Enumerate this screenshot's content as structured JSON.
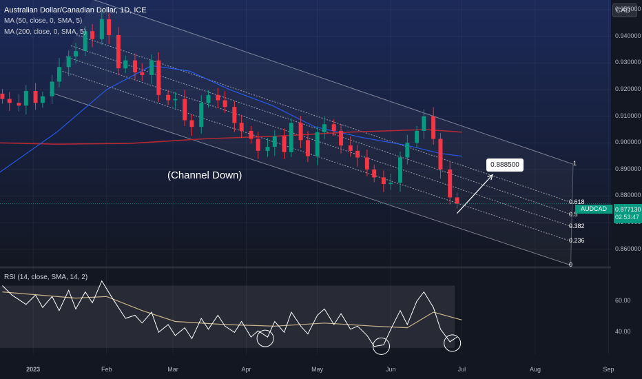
{
  "header": {
    "title": "Australian Dollar/Canadian Dollar, 1D, ICE",
    "ma50": "MA (50, close, 0, SMA, 5)",
    "ma200": "MA (200, close, 0, SMA, 5)",
    "currency": "CAD"
  },
  "rsi": {
    "label": "RSI (14, close, SMA, 14, 2)",
    "axis_ticks": [
      "60.00",
      "40.00"
    ]
  },
  "annotation": {
    "text": "(Channel Down)",
    "target": "0.888500"
  },
  "price": {
    "symbol": "AUDCAD",
    "last": "0.877130",
    "countdown": "02:53:47"
  },
  "fib_levels": [
    "1",
    "0.618",
    "0.5",
    "0.382",
    "0.236",
    "0"
  ],
  "colors": {
    "background": "#131722",
    "up": "#089981",
    "down": "#f23645",
    "ma50": "#2962ff",
    "ma200": "#b22833",
    "rsi": "#ffffff",
    "rsi_ma": "#c9b48a"
  },
  "chart_data": {
    "type": "candlestick",
    "title": "Australian Dollar/Canadian Dollar, 1D, ICE",
    "y_ticks": [
      "0.950000",
      "0.940000",
      "0.930000",
      "0.920000",
      "0.910000",
      "0.900000",
      "0.890000",
      "0.880000",
      "0.870000",
      "0.860000"
    ],
    "y_tick_values": [
      0.95,
      0.94,
      0.93,
      0.92,
      0.91,
      0.9,
      0.89,
      0.88,
      0.87,
      0.86
    ],
    "ylim": [
      0.8537,
      0.9537
    ],
    "x_ticks": [
      "2023",
      "Feb",
      "Mar",
      "Apr",
      "May",
      "Jun",
      "Jul",
      "Aug",
      "Sep"
    ],
    "x_tick_dates": [
      "2023-01-01",
      "2023-02-01",
      "2023-03-01",
      "2023-04-01",
      "2023-05-01",
      "2023-06-01",
      "2023-07-01",
      "2023-08-01",
      "2023-09-01"
    ],
    "xlim": [
      "2022-12-18",
      "2023-09-02"
    ],
    "closes": [
      {
        "date": "2022-12-19",
        "close": 0.9165
      },
      {
        "date": "2022-12-22",
        "close": 0.915
      },
      {
        "date": "2022-12-26",
        "close": 0.914
      },
      {
        "date": "2022-12-29",
        "close": 0.9195
      },
      {
        "date": "2023-01-02",
        "close": 0.915
      },
      {
        "date": "2023-01-05",
        "close": 0.9175
      },
      {
        "date": "2023-01-09",
        "close": 0.923
      },
      {
        "date": "2023-01-12",
        "close": 0.9285
      },
      {
        "date": "2023-01-16",
        "close": 0.9325
      },
      {
        "date": "2023-01-19",
        "close": 0.9345
      },
      {
        "date": "2023-01-23",
        "close": 0.942
      },
      {
        "date": "2023-01-26",
        "close": 0.939
      },
      {
        "date": "2023-01-30",
        "close": 0.9465
      },
      {
        "date": "2023-02-02",
        "close": 0.9405
      },
      {
        "date": "2023-02-06",
        "close": 0.928
      },
      {
        "date": "2023-02-09",
        "close": 0.931
      },
      {
        "date": "2023-02-13",
        "close": 0.9265
      },
      {
        "date": "2023-02-16",
        "close": 0.9255
      },
      {
        "date": "2023-02-20",
        "close": 0.931
      },
      {
        "date": "2023-02-23",
        "close": 0.918
      },
      {
        "date": "2023-02-27",
        "close": 0.916
      },
      {
        "date": "2023-03-02",
        "close": 0.9165
      },
      {
        "date": "2023-03-06",
        "close": 0.9085
      },
      {
        "date": "2023-03-09",
        "close": 0.906
      },
      {
        "date": "2023-03-13",
        "close": 0.915
      },
      {
        "date": "2023-03-16",
        "close": 0.918
      },
      {
        "date": "2023-03-20",
        "close": 0.916
      },
      {
        "date": "2023-03-23",
        "close": 0.9135
      },
      {
        "date": "2023-03-27",
        "close": 0.9075
      },
      {
        "date": "2023-03-30",
        "close": 0.9045
      },
      {
        "date": "2023-04-03",
        "close": 0.9015
      },
      {
        "date": "2023-04-06",
        "close": 0.897
      },
      {
        "date": "2023-04-10",
        "close": 0.8985
      },
      {
        "date": "2023-04-13",
        "close": 0.9025
      },
      {
        "date": "2023-04-17",
        "close": 0.8965
      },
      {
        "date": "2023-04-20",
        "close": 0.9075
      },
      {
        "date": "2023-04-24",
        "close": 0.901
      },
      {
        "date": "2023-04-27",
        "close": 0.895
      },
      {
        "date": "2023-05-01",
        "close": 0.904
      },
      {
        "date": "2023-05-04",
        "close": 0.907
      },
      {
        "date": "2023-05-08",
        "close": 0.9045
      },
      {
        "date": "2023-05-11",
        "close": 0.899
      },
      {
        "date": "2023-05-15",
        "close": 0.897
      },
      {
        "date": "2023-05-18",
        "close": 0.8945
      },
      {
        "date": "2023-05-22",
        "close": 0.89
      },
      {
        "date": "2023-05-25",
        "close": 0.887
      },
      {
        "date": "2023-05-29",
        "close": 0.8845
      },
      {
        "date": "2023-06-01",
        "close": 0.885
      },
      {
        "date": "2023-06-05",
        "close": 0.8945
      },
      {
        "date": "2023-06-08",
        "close": 0.9
      },
      {
        "date": "2023-06-12",
        "close": 0.9045
      },
      {
        "date": "2023-06-15",
        "close": 0.91
      },
      {
        "date": "2023-06-19",
        "close": 0.9015
      },
      {
        "date": "2023-06-22",
        "close": 0.89
      },
      {
        "date": "2023-06-26",
        "close": 0.8795
      },
      {
        "date": "2023-06-29",
        "close": 0.8771
      }
    ],
    "ma50": [
      {
        "date": "2022-12-18",
        "value": 0.889
      },
      {
        "date": "2023-01-11",
        "value": 0.904
      },
      {
        "date": "2023-02-01",
        "value": 0.92
      },
      {
        "date": "2023-02-20",
        "value": 0.929
      },
      {
        "date": "2023-03-08",
        "value": 0.927
      },
      {
        "date": "2023-03-25",
        "value": 0.92
      },
      {
        "date": "2023-04-12",
        "value": 0.914
      },
      {
        "date": "2023-04-30",
        "value": 0.906
      },
      {
        "date": "2023-05-20",
        "value": 0.902
      },
      {
        "date": "2023-06-08",
        "value": 0.899
      },
      {
        "date": "2023-06-22",
        "value": 0.896
      },
      {
        "date": "2023-07-01",
        "value": 0.895
      }
    ],
    "ma200": [
      {
        "date": "2022-12-18",
        "value": 0.9
      },
      {
        "date": "2023-01-11",
        "value": 0.8995
      },
      {
        "date": "2023-02-11",
        "value": 0.8998
      },
      {
        "date": "2023-03-14",
        "value": 0.9015
      },
      {
        "date": "2023-04-14",
        "value": 0.9025
      },
      {
        "date": "2023-05-14",
        "value": 0.904
      },
      {
        "date": "2023-06-16",
        "value": 0.905
      },
      {
        "date": "2023-07-01",
        "value": 0.904
      }
    ],
    "channel": {
      "upper": [
        {
          "date": "2023-01-26",
          "value": 0.954
        },
        {
          "date": "2023-08-17",
          "value": 0.892
        }
      ],
      "lower": [
        {
          "date": "2023-01-08",
          "value": 0.919
        },
        {
          "date": "2023-08-16",
          "value": 0.854
        }
      ],
      "fib_levels": [
        1,
        0.618,
        0.5,
        0.382,
        0.236,
        0
      ]
    },
    "projection": {
      "from": {
        "date": "2023-06-29",
        "value": 0.8735
      },
      "to": {
        "date": "2023-07-14",
        "value": 0.888
      },
      "target": 0.8885
    },
    "rsi": {
      "ylim": [
        26,
        72
      ],
      "rsi_ticks": [
        60,
        40
      ],
      "band": [
        30,
        70
      ],
      "values": [
        {
          "date": "2022-12-19",
          "value": 70
        },
        {
          "date": "2022-12-23",
          "value": 64
        },
        {
          "date": "2022-12-29",
          "value": 58
        },
        {
          "date": "2023-01-02",
          "value": 64
        },
        {
          "date": "2023-01-05",
          "value": 56
        },
        {
          "date": "2023-01-09",
          "value": 63
        },
        {
          "date": "2023-01-12",
          "value": 54
        },
        {
          "date": "2023-01-16",
          "value": 67
        },
        {
          "date": "2023-01-19",
          "value": 55
        },
        {
          "date": "2023-01-23",
          "value": 66
        },
        {
          "date": "2023-01-26",
          "value": 59
        },
        {
          "date": "2023-01-30",
          "value": 73
        },
        {
          "date": "2023-02-03",
          "value": 63
        },
        {
          "date": "2023-02-06",
          "value": 56
        },
        {
          "date": "2023-02-09",
          "value": 49
        },
        {
          "date": "2023-02-13",
          "value": 51
        },
        {
          "date": "2023-02-16",
          "value": 46
        },
        {
          "date": "2023-02-20",
          "value": 53
        },
        {
          "date": "2023-02-23",
          "value": 40
        },
        {
          "date": "2023-02-27",
          "value": 45
        },
        {
          "date": "2023-03-02",
          "value": 38
        },
        {
          "date": "2023-03-06",
          "value": 43
        },
        {
          "date": "2023-03-09",
          "value": 36
        },
        {
          "date": "2023-03-13",
          "value": 49
        },
        {
          "date": "2023-03-16",
          "value": 42
        },
        {
          "date": "2023-03-20",
          "value": 51
        },
        {
          "date": "2023-03-23",
          "value": 44
        },
        {
          "date": "2023-03-27",
          "value": 40
        },
        {
          "date": "2023-03-30",
          "value": 47
        },
        {
          "date": "2023-04-03",
          "value": 37
        },
        {
          "date": "2023-04-06",
          "value": 41
        },
        {
          "date": "2023-04-10",
          "value": 37
        },
        {
          "date": "2023-04-13",
          "value": 47
        },
        {
          "date": "2023-04-17",
          "value": 40
        },
        {
          "date": "2023-04-20",
          "value": 53
        },
        {
          "date": "2023-04-24",
          "value": 44
        },
        {
          "date": "2023-04-27",
          "value": 39
        },
        {
          "date": "2023-05-01",
          "value": 51
        },
        {
          "date": "2023-05-04",
          "value": 55
        },
        {
          "date": "2023-05-08",
          "value": 45
        },
        {
          "date": "2023-05-11",
          "value": 52
        },
        {
          "date": "2023-05-15",
          "value": 42
        },
        {
          "date": "2023-05-18",
          "value": 44
        },
        {
          "date": "2023-05-22",
          "value": 38
        },
        {
          "date": "2023-05-25",
          "value": 31
        },
        {
          "date": "2023-05-29",
          "value": 32
        },
        {
          "date": "2023-06-01",
          "value": 42
        },
        {
          "date": "2023-06-05",
          "value": 54
        },
        {
          "date": "2023-06-08",
          "value": 45
        },
        {
          "date": "2023-06-12",
          "value": 60
        },
        {
          "date": "2023-06-15",
          "value": 66
        },
        {
          "date": "2023-06-19",
          "value": 56
        },
        {
          "date": "2023-06-22",
          "value": 42
        },
        {
          "date": "2023-06-26",
          "value": 34
        },
        {
          "date": "2023-06-29",
          "value": 37
        }
      ],
      "ma": [
        {
          "date": "2022-12-19",
          "value": 66
        },
        {
          "date": "2023-01-19",
          "value": 62
        },
        {
          "date": "2023-02-01",
          "value": 63
        },
        {
          "date": "2023-02-16",
          "value": 54
        },
        {
          "date": "2023-03-02",
          "value": 47
        },
        {
          "date": "2023-03-23",
          "value": 45
        },
        {
          "date": "2023-04-13",
          "value": 44
        },
        {
          "date": "2023-05-04",
          "value": 46
        },
        {
          "date": "2023-05-25",
          "value": 44
        },
        {
          "date": "2023-06-08",
          "value": 43
        },
        {
          "date": "2023-06-19",
          "value": 53
        },
        {
          "date": "2023-07-01",
          "value": 48
        }
      ],
      "circles": [
        "2023-04-09",
        "2023-05-28",
        "2023-06-27"
      ]
    }
  }
}
